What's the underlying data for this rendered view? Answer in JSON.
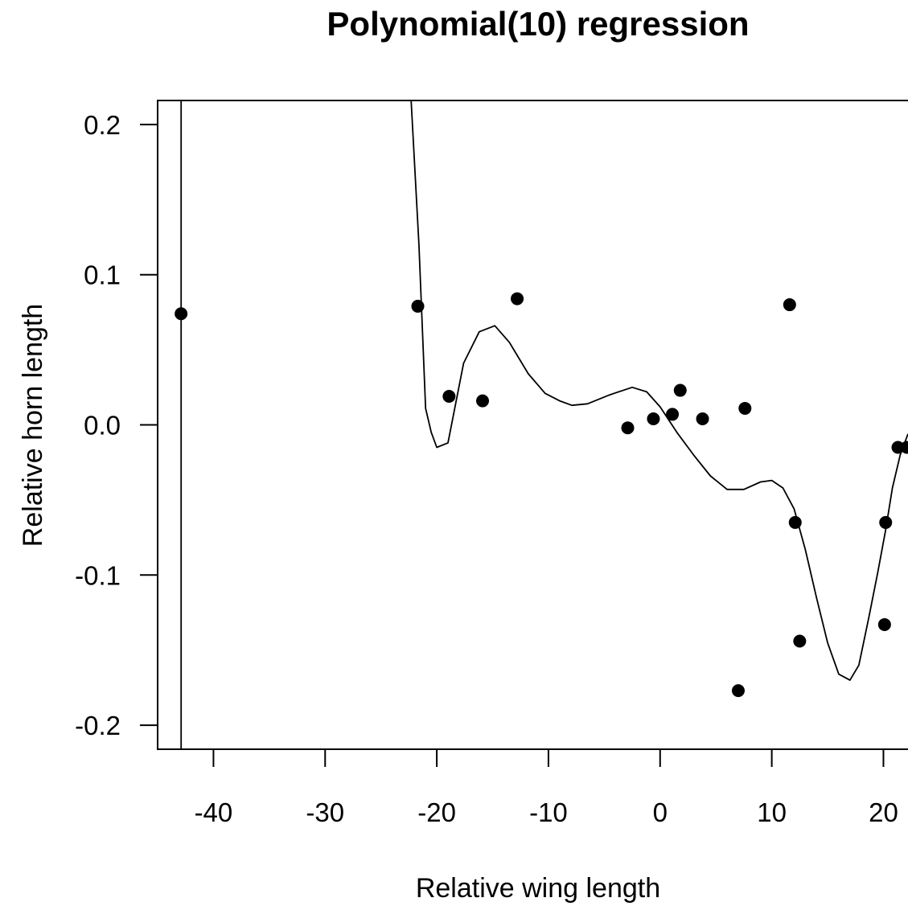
{
  "chart_data": {
    "type": "scatter",
    "title": "Polynomial(10) regression",
    "xlabel": "Relative wing length",
    "ylabel": "Relative horn length",
    "xlim": [
      -45,
      22.2
    ],
    "ylim": [
      -0.216,
      0.216
    ],
    "xticks": [
      -40,
      -30,
      -20,
      -10,
      0,
      10,
      20
    ],
    "xtick_labels": [
      "-40",
      "-30",
      "-20",
      "-10",
      "0",
      "10",
      "20"
    ],
    "yticks": [
      -0.2,
      -0.1,
      0.0,
      0.1,
      0.2
    ],
    "ytick_labels": [
      "-0.2",
      "-0.1",
      "0.0",
      "0.1",
      "0.2"
    ],
    "grid": false,
    "series": [
      {
        "type": "scatter",
        "x": [
          -42.9,
          -21.7,
          -18.9,
          -15.9,
          -12.8,
          -2.9,
          -0.6,
          1.1,
          1.8,
          3.8,
          7.0,
          7.6,
          11.6,
          12.1,
          12.5,
          20.1,
          20.2,
          21.3,
          22.1
        ],
        "y": [
          0.074,
          0.079,
          0.019,
          0.016,
          0.084,
          -0.002,
          0.004,
          0.007,
          0.023,
          0.004,
          -0.177,
          0.011,
          0.08,
          -0.065,
          -0.144,
          -0.133,
          -0.065,
          -0.015,
          -0.015
        ]
      },
      {
        "type": "line",
        "x": [
          -42.9,
          -42.9,
          -22.3,
          -21.6,
          -21.0,
          -20.5,
          -20.0,
          -19.0,
          -17.6,
          -16.2,
          -14.8,
          -13.5,
          -11.8,
          -10.3,
          -9.0,
          -7.9,
          -6.5,
          -4.5,
          -2.5,
          -1.2,
          0.0,
          1.5,
          3.0,
          4.5,
          6.0,
          7.5,
          9.0,
          10.0,
          11.0,
          12.0,
          13.0,
          14.0,
          15.0,
          16.0,
          17.0,
          17.8,
          18.7,
          19.5,
          20.2,
          20.8,
          21.5,
          22.2
        ],
        "y": [
          -0.216,
          0.216,
          0.216,
          0.12,
          0.011,
          -0.005,
          -0.015,
          -0.012,
          0.041,
          0.062,
          0.066,
          0.055,
          0.034,
          0.021,
          0.016,
          0.013,
          0.014,
          0.02,
          0.025,
          0.022,
          0.012,
          -0.005,
          -0.02,
          -0.034,
          -0.043,
          -0.043,
          -0.038,
          -0.037,
          -0.042,
          -0.056,
          -0.083,
          -0.115,
          -0.145,
          -0.166,
          -0.17,
          -0.16,
          -0.128,
          -0.098,
          -0.07,
          -0.042,
          -0.02,
          -0.006
        ]
      }
    ]
  }
}
